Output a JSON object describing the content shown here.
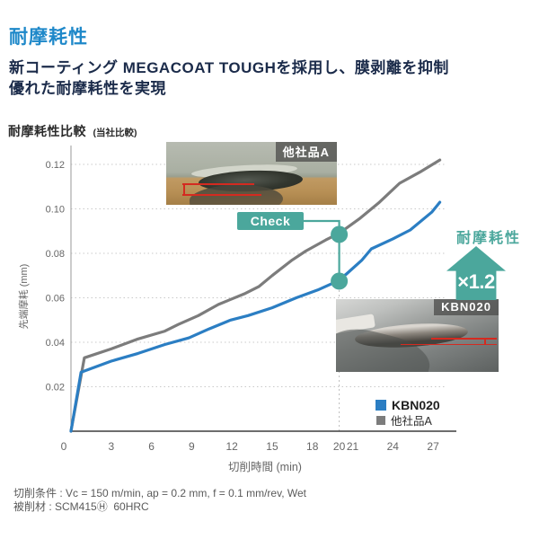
{
  "page": {
    "title": "耐摩耗性",
    "subtitle_line1": "新コーティング MEGACOAT TOUGHを採用し、膜剥離を抑制",
    "subtitle_line2": "優れた耐摩耗性を実現",
    "footer_line1": "切削条件 : Vc = 150 m/min, ap = 0.2 mm, f = 0.1 mm/rev, Wet",
    "footer_line2": "被削材 : SCM415Ⓗ  60HRC"
  },
  "chart_heading": {
    "title": "耐摩耗性比較",
    "note": "(当社比較)"
  },
  "annotations": {
    "check_label": "Check",
    "gain_label": "耐摩耗性",
    "gain_value": "×1.2",
    "photo_top_label": "他社品A",
    "photo_bottom_label": "KBN020"
  },
  "legend": [
    {
      "label": "KBN020",
      "color": "#2b7ec3"
    },
    {
      "label": "他社品A",
      "color": "#7c7c7c"
    }
  ],
  "colors": {
    "accent_blue": "#1e88c9",
    "heading_navy": "#1b2b4a",
    "teal": "#4ba79c",
    "line_blue": "#2b7ec3",
    "line_gray": "#7c7c7c",
    "grid_gray": "#c9c9c9",
    "axis_dark": "#3d3d3d",
    "axis_light": "#9a9a9a",
    "tick_gray": "#666666",
    "red_marker": "#d42a20"
  },
  "chart_data": {
    "type": "line",
    "title": "耐摩耗性比較 (当社比較)",
    "xlabel": "切削時間 (min)",
    "ylabel": "先端摩耗 (mm)",
    "x_ticks": [
      0,
      3,
      6,
      9,
      12,
      15,
      18,
      20,
      21,
      24,
      27
    ],
    "y_ticks": [
      0.02,
      0.04,
      0.06,
      0.08,
      0.1,
      0.12
    ],
    "xlim": [
      0,
      28.5
    ],
    "ylim": [
      0,
      0.128
    ],
    "grid": "horizontal dotted",
    "legend_position": "lower right",
    "series": [
      {
        "name": "KBN020",
        "color": "#2b7ec3",
        "points": [
          [
            0,
            0
          ],
          [
            0.75,
            0.0265
          ],
          [
            3,
            0.0315
          ],
          [
            5,
            0.035
          ],
          [
            7,
            0.039
          ],
          [
            8.8,
            0.042
          ],
          [
            10.3,
            0.046
          ],
          [
            11.9,
            0.05
          ],
          [
            13.2,
            0.052
          ],
          [
            15,
            0.0555
          ],
          [
            16.8,
            0.06
          ],
          [
            18.4,
            0.0635
          ],
          [
            19.5,
            0.0665
          ],
          [
            20.5,
            0.0705
          ],
          [
            21.7,
            0.077
          ],
          [
            22.4,
            0.082
          ],
          [
            24,
            0.0865
          ],
          [
            25.3,
            0.0905
          ],
          [
            26.9,
            0.0985
          ],
          [
            27.5,
            0.103
          ]
        ]
      },
      {
        "name": "他社品A",
        "color": "#7c7c7c",
        "points": [
          [
            0,
            0
          ],
          [
            1,
            0.033
          ],
          [
            3,
            0.037
          ],
          [
            5,
            0.0415
          ],
          [
            7,
            0.045
          ],
          [
            8,
            0.048
          ],
          [
            9.5,
            0.052
          ],
          [
            11,
            0.057
          ],
          [
            13,
            0.062
          ],
          [
            14,
            0.065
          ],
          [
            15,
            0.07
          ],
          [
            16.5,
            0.077
          ],
          [
            17.5,
            0.081
          ],
          [
            19,
            0.086
          ],
          [
            20,
            0.089
          ],
          [
            21.5,
            0.0955
          ],
          [
            23,
            0.103
          ],
          [
            24.5,
            0.1115
          ],
          [
            26,
            0.1165
          ],
          [
            27.5,
            0.122
          ]
        ]
      }
    ],
    "check_markers": {
      "x": 20,
      "values": [
        0.0885,
        0.0675
      ]
    }
  }
}
